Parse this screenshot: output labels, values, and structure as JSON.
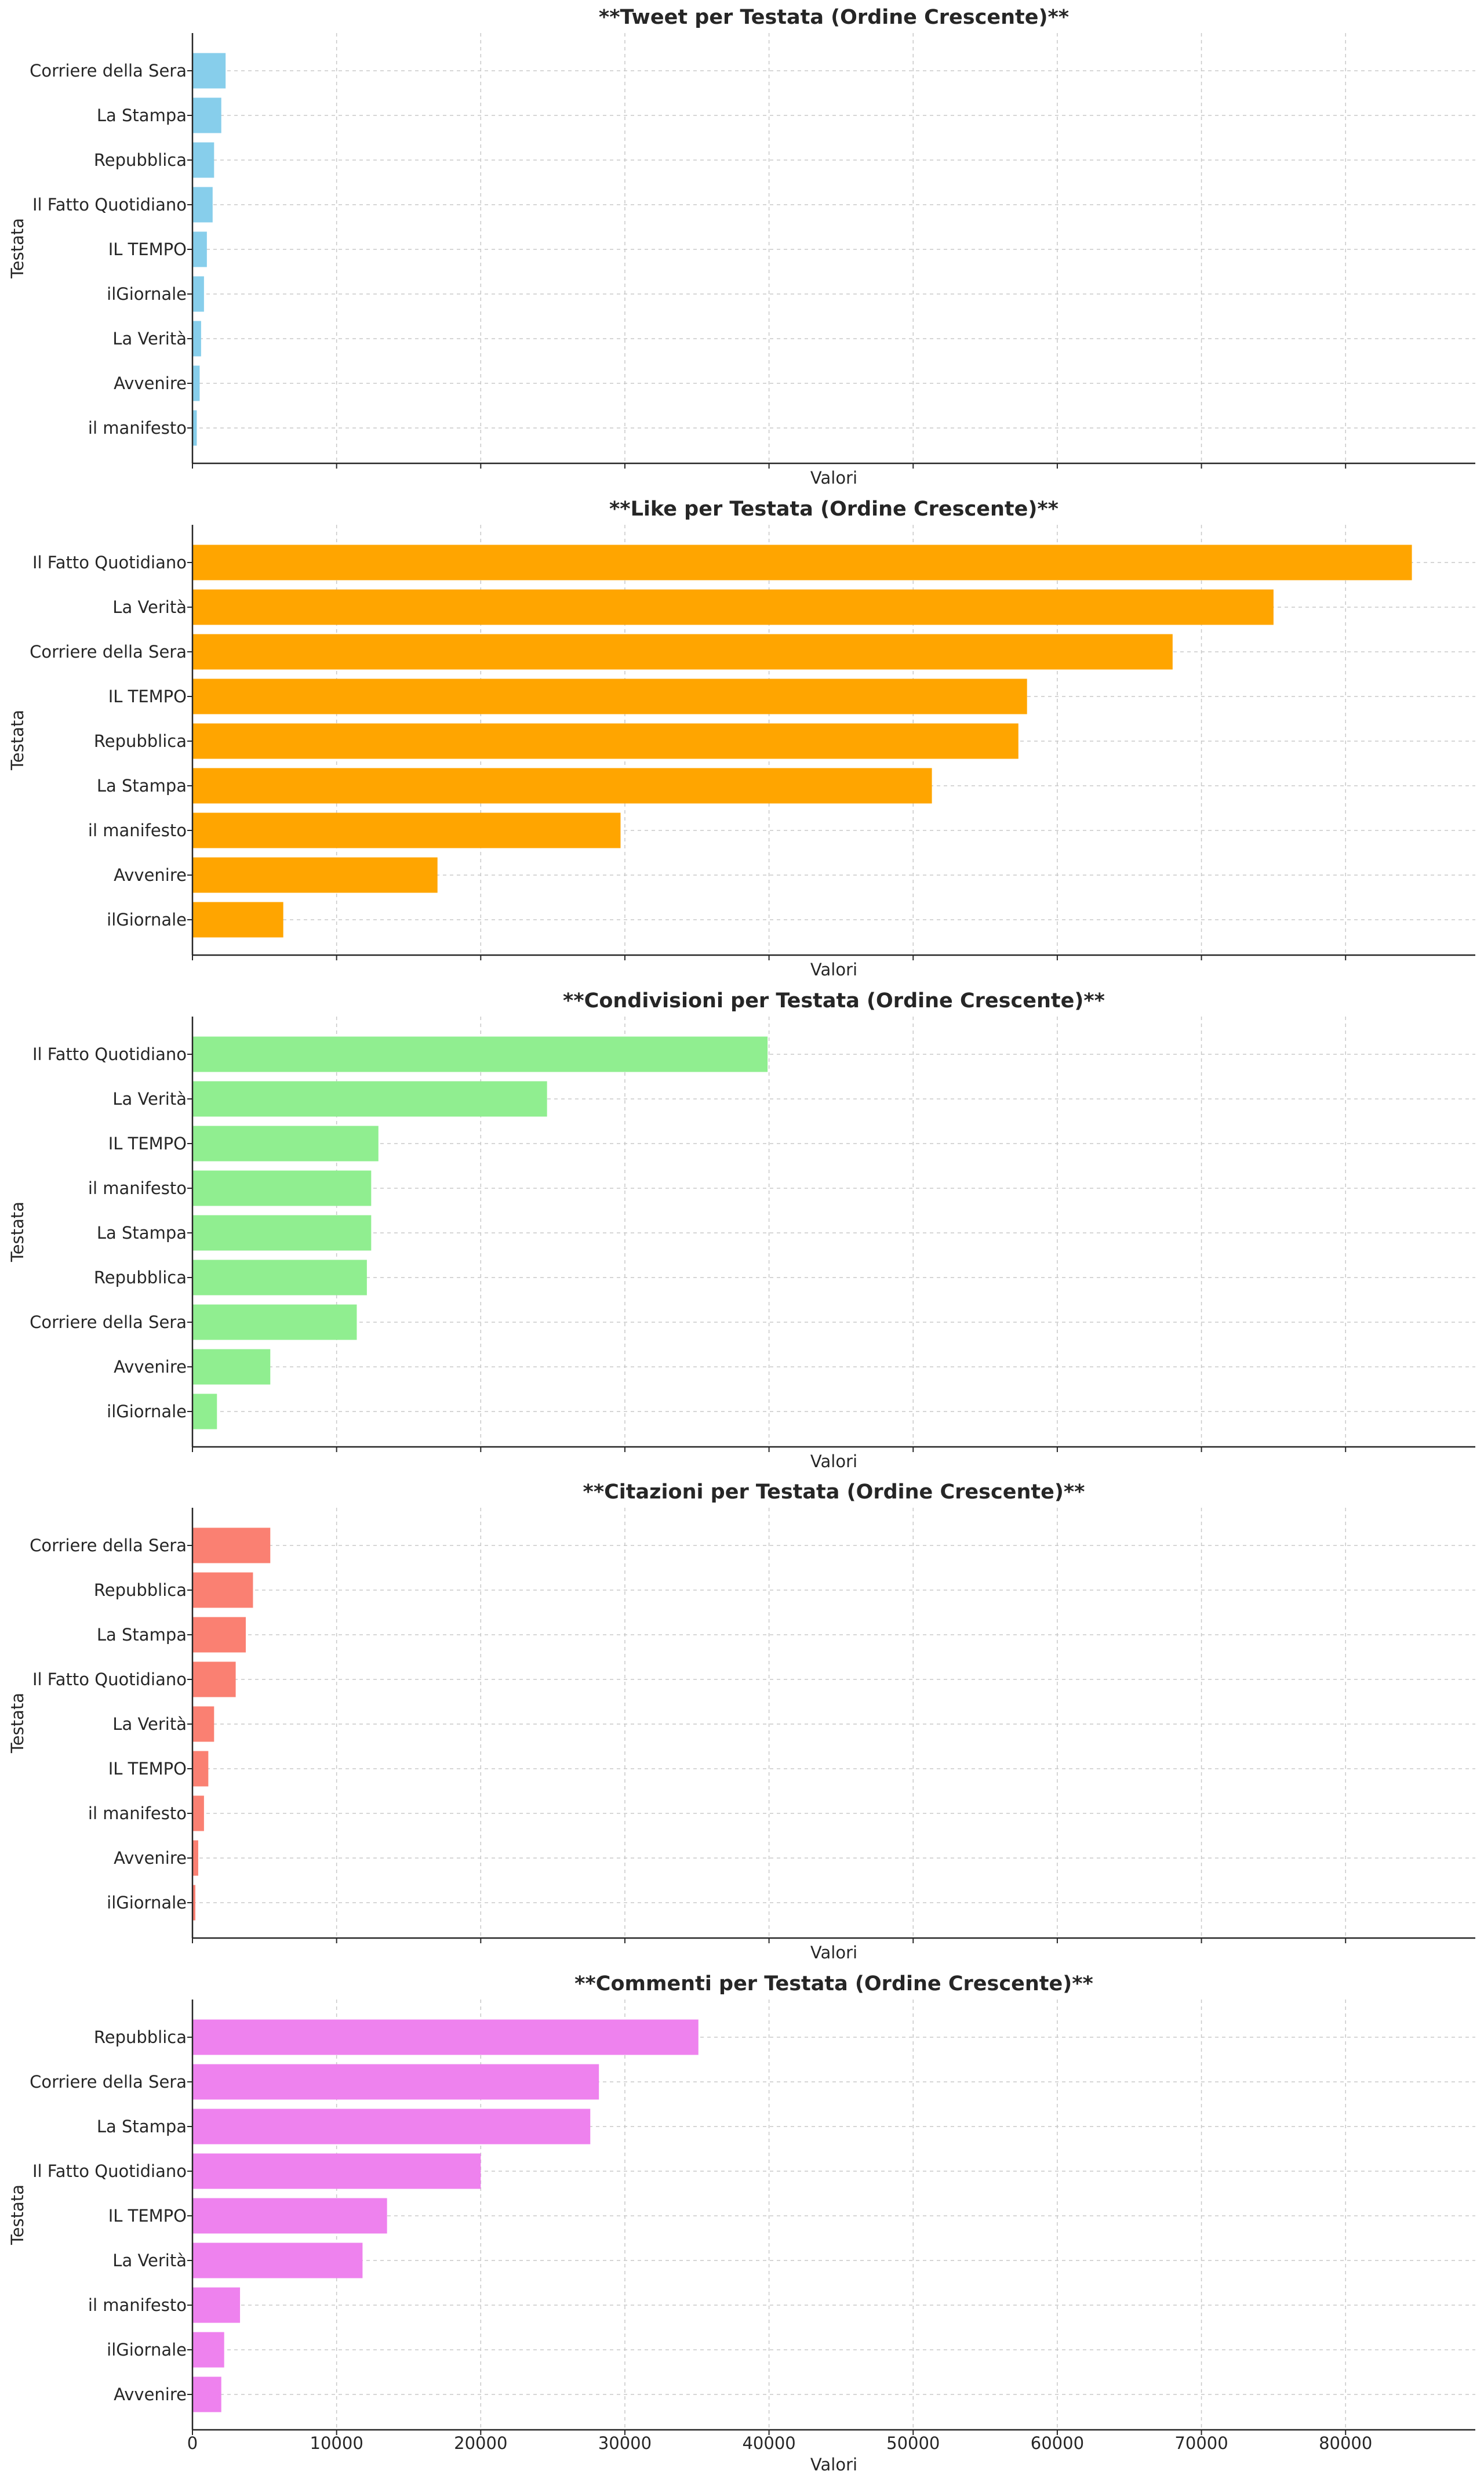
{
  "chart_data": [
    {
      "type": "bar",
      "orientation": "horizontal",
      "title": "**Tweet per Testata (Ordine Crescente)**",
      "xlabel": "Valori",
      "ylabel": "Testata",
      "color": "#87ceeb",
      "xlim": [
        0,
        89000
      ],
      "xticks": [
        0,
        10000,
        20000,
        30000,
        40000,
        50000,
        60000,
        70000,
        80000
      ],
      "show_xtick_labels": false,
      "grid": true,
      "categories": [
        "Corriere della Sera",
        "La Stampa",
        "Repubblica",
        "Il Fatto Quotidiano",
        "IL TEMPO",
        "ilGiornale",
        "La Verità",
        "Avvenire",
        "il manifesto"
      ],
      "values": [
        2300,
        2000,
        1500,
        1400,
        1000,
        800,
        600,
        500,
        300
      ]
    },
    {
      "type": "bar",
      "orientation": "horizontal",
      "title": "**Like per Testata (Ordine Crescente)**",
      "xlabel": "Valori",
      "ylabel": "Testata",
      "color": "#ffa500",
      "xlim": [
        0,
        89000
      ],
      "xticks": [
        0,
        10000,
        20000,
        30000,
        40000,
        50000,
        60000,
        70000,
        80000
      ],
      "show_xtick_labels": false,
      "grid": true,
      "categories": [
        "Il Fatto Quotidiano",
        "La Verità",
        "Corriere della Sera",
        "IL TEMPO",
        "Repubblica",
        "La Stampa",
        "il manifesto",
        "Avvenire",
        "ilGiornale"
      ],
      "values": [
        84600,
        75000,
        68000,
        57900,
        57300,
        51300,
        29700,
        17000,
        6300
      ]
    },
    {
      "type": "bar",
      "orientation": "horizontal",
      "title": "**Condivisioni per Testata (Ordine Crescente)**",
      "xlabel": "Valori",
      "ylabel": "Testata",
      "color": "#90ee90",
      "xlim": [
        0,
        89000
      ],
      "xticks": [
        0,
        10000,
        20000,
        30000,
        40000,
        50000,
        60000,
        70000,
        80000
      ],
      "show_xtick_labels": false,
      "grid": true,
      "categories": [
        "Il Fatto Quotidiano",
        "La Verità",
        "IL TEMPO",
        "il manifesto",
        "La Stampa",
        "Repubblica",
        "Corriere della Sera",
        "Avvenire",
        "ilGiornale"
      ],
      "values": [
        39900,
        24600,
        12900,
        12400,
        12400,
        12100,
        11400,
        5400,
        1700
      ]
    },
    {
      "type": "bar",
      "orientation": "horizontal",
      "title": "**Citazioni per Testata (Ordine Crescente)**",
      "xlabel": "Valori",
      "ylabel": "Testata",
      "color": "#fa8072",
      "xlim": [
        0,
        89000
      ],
      "xticks": [
        0,
        10000,
        20000,
        30000,
        40000,
        50000,
        60000,
        70000,
        80000
      ],
      "show_xtick_labels": false,
      "grid": true,
      "categories": [
        "Corriere della Sera",
        "Repubblica",
        "La Stampa",
        "Il Fatto Quotidiano",
        "La Verità",
        "IL TEMPO",
        "il manifesto",
        "Avvenire",
        "ilGiornale"
      ],
      "values": [
        5400,
        4200,
        3700,
        3000,
        1500,
        1100,
        800,
        400,
        200
      ]
    },
    {
      "type": "bar",
      "orientation": "horizontal",
      "title": "**Commenti per Testata (Ordine Crescente)**",
      "xlabel": "Valori",
      "ylabel": "Testata",
      "color": "#ee82ee",
      "xlim": [
        0,
        89000
      ],
      "xticks": [
        0,
        10000,
        20000,
        30000,
        40000,
        50000,
        60000,
        70000,
        80000
      ],
      "xtick_labels": [
        "0",
        "10000",
        "20000",
        "30000",
        "40000",
        "50000",
        "60000",
        "70000",
        "80000"
      ],
      "show_xtick_labels": true,
      "grid": true,
      "categories": [
        "Repubblica",
        "Corriere della Sera",
        "La Stampa",
        "Il Fatto Quotidiano",
        "IL TEMPO",
        "La Verità",
        "il manifesto",
        "ilGiornale",
        "Avvenire"
      ],
      "values": [
        35100,
        28200,
        27600,
        20000,
        13500,
        11800,
        3300,
        2200,
        2000
      ]
    }
  ]
}
